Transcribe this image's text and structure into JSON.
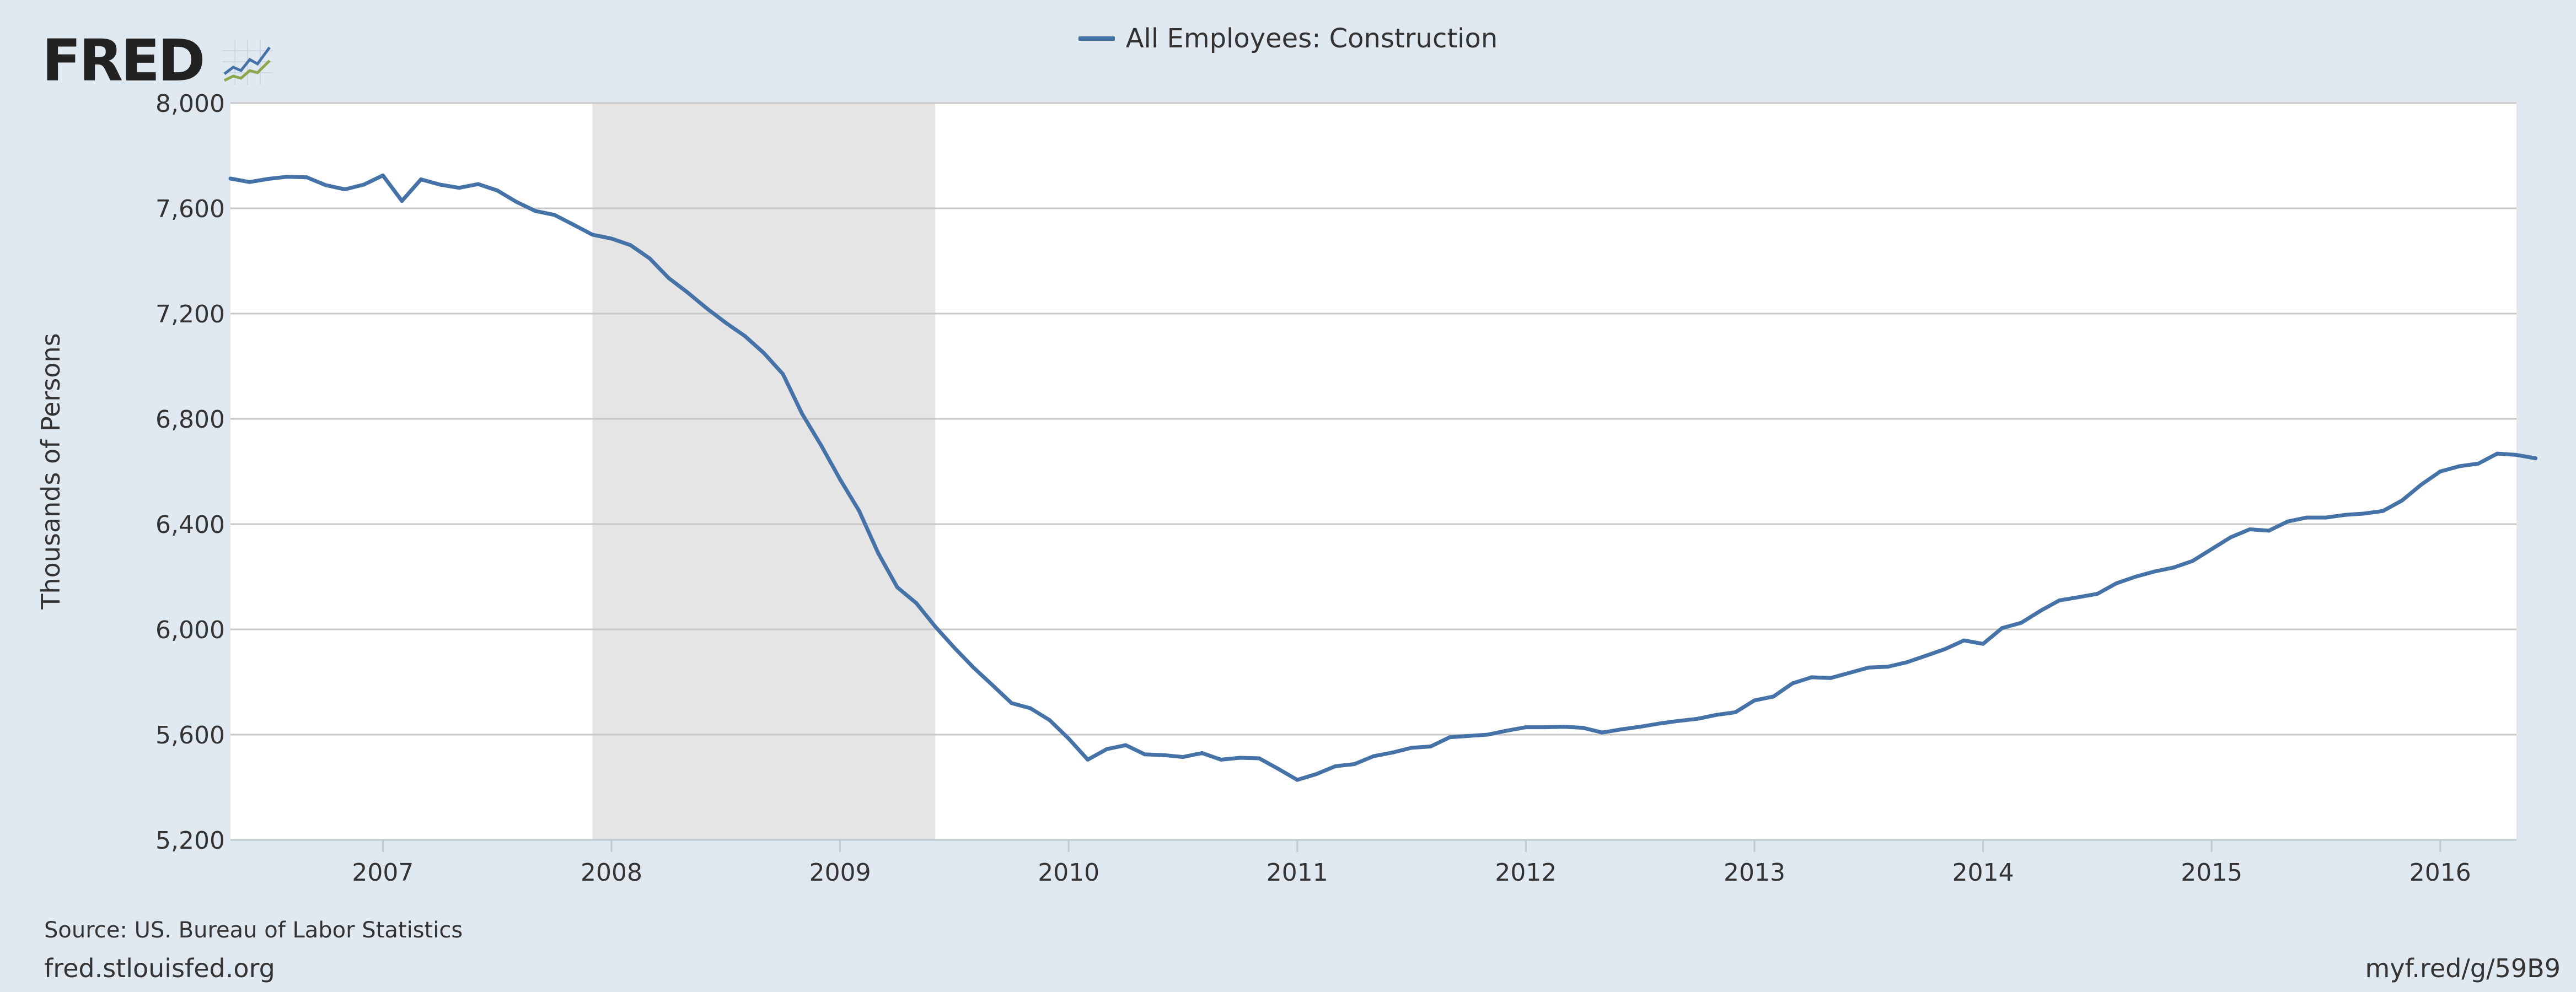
{
  "brand": {
    "name": "FRED",
    "icon": "line-chart-icon"
  },
  "footer": {
    "source": "Source: US. Bureau of Labor Statistics",
    "site": "fred.stlouisfed.org",
    "shortlink": "myf.red/g/59B9"
  },
  "colors": {
    "line": "#4572a7",
    "recession": "#e5e5e5",
    "background": "#e1e9f0",
    "plot": "#ffffff",
    "grid": "#c8c8c8"
  },
  "chart_data": {
    "type": "line",
    "title": "",
    "xlabel": "",
    "ylabel": "Thousands of Persons",
    "ylim": [
      5200,
      8000
    ],
    "yticks": [
      "5,200",
      "5,600",
      "6,000",
      "6,400",
      "6,800",
      "7,200",
      "7,600",
      "8,000"
    ],
    "ytick_values": [
      5200,
      5600,
      6000,
      6400,
      6800,
      7200,
      7600,
      8000
    ],
    "xticks": [
      "2007",
      "2008",
      "2009",
      "2010",
      "2011",
      "2012",
      "2013",
      "2014",
      "2015",
      "2016"
    ],
    "xlim": [
      "2006-05",
      "2016-05"
    ],
    "grid": true,
    "legend_placement": "top-center",
    "recession": {
      "start": "2007-12",
      "end": "2009-06"
    },
    "series": [
      {
        "name": "All Employees: Construction",
        "color": "#4572a7",
        "start": "2006-05",
        "frequency": "monthly",
        "values": [
          7713,
          7700,
          7712,
          7720,
          7718,
          7688,
          7672,
          7690,
          7725,
          7628,
          7710,
          7690,
          7678,
          7692,
          7668,
          7625,
          7590,
          7575,
          7538,
          7500,
          7485,
          7460,
          7410,
          7335,
          7280,
          7220,
          7165,
          7115,
          7050,
          6970,
          6820,
          6700,
          6570,
          6450,
          6290,
          6160,
          6100,
          6010,
          5930,
          5855,
          5788,
          5720,
          5700,
          5655,
          5585,
          5505,
          5545,
          5560,
          5525,
          5522,
          5515,
          5530,
          5505,
          5512,
          5510,
          5470,
          5428,
          5450,
          5480,
          5488,
          5518,
          5532,
          5550,
          5555,
          5590,
          5595,
          5600,
          5615,
          5628,
          5628,
          5630,
          5626,
          5608,
          5620,
          5630,
          5642,
          5652,
          5660,
          5675,
          5685,
          5730,
          5745,
          5795,
          5818,
          5815,
          5835,
          5855,
          5858,
          5875,
          5900,
          5925,
          5958,
          5945,
          6005,
          6025,
          6070,
          6110,
          6122,
          6135,
          6175,
          6200,
          6220,
          6235,
          6260,
          6305,
          6350,
          6380,
          6375,
          6410,
          6425,
          6425,
          6435,
          6440,
          6450,
          6490,
          6550,
          6600,
          6620,
          6630,
          6668,
          6663,
          6650
        ]
      }
    ]
  }
}
